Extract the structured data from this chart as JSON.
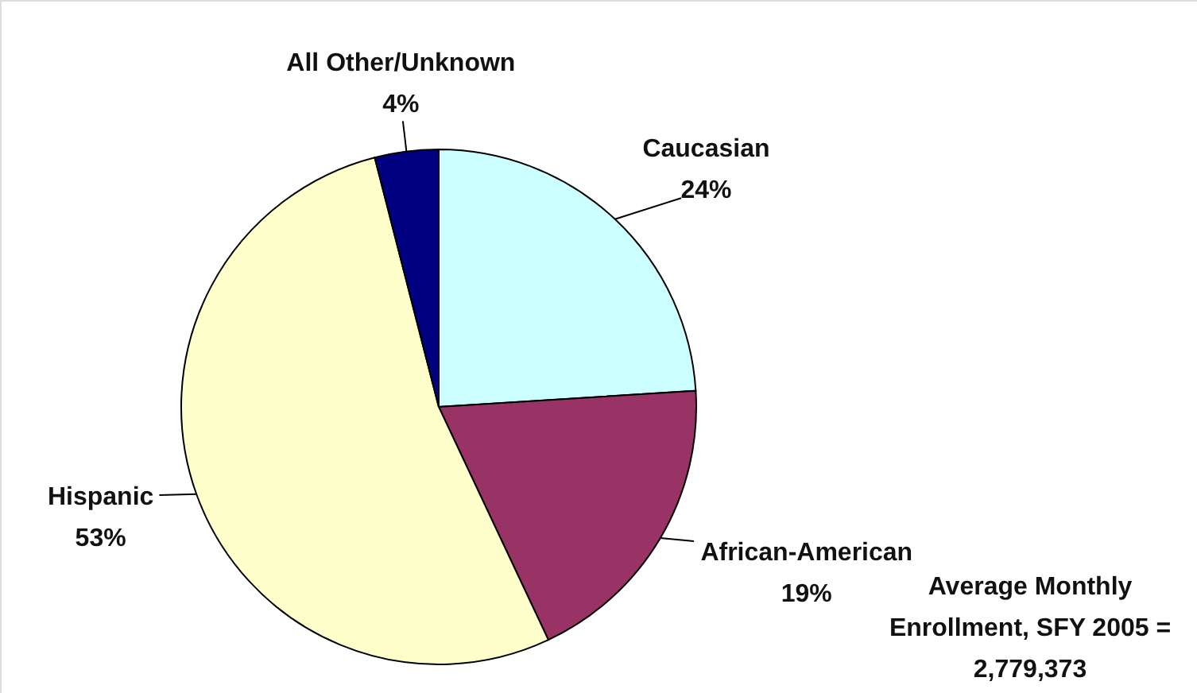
{
  "chart_data": {
    "type": "pie",
    "categories": [
      "Caucasian",
      "African-American",
      "Hispanic",
      "All Other/Unknown"
    ],
    "values": [
      24,
      19,
      53,
      4
    ],
    "colors": [
      "#ccffff",
      "#993366",
      "#ffffcc",
      "#000080"
    ],
    "value_labels": [
      "24%",
      "19%",
      "53%",
      "4%"
    ],
    "legend": false,
    "annotations": [
      "Average Monthly Enrollment, SFY 2005 = 2,779,373"
    ]
  }
}
